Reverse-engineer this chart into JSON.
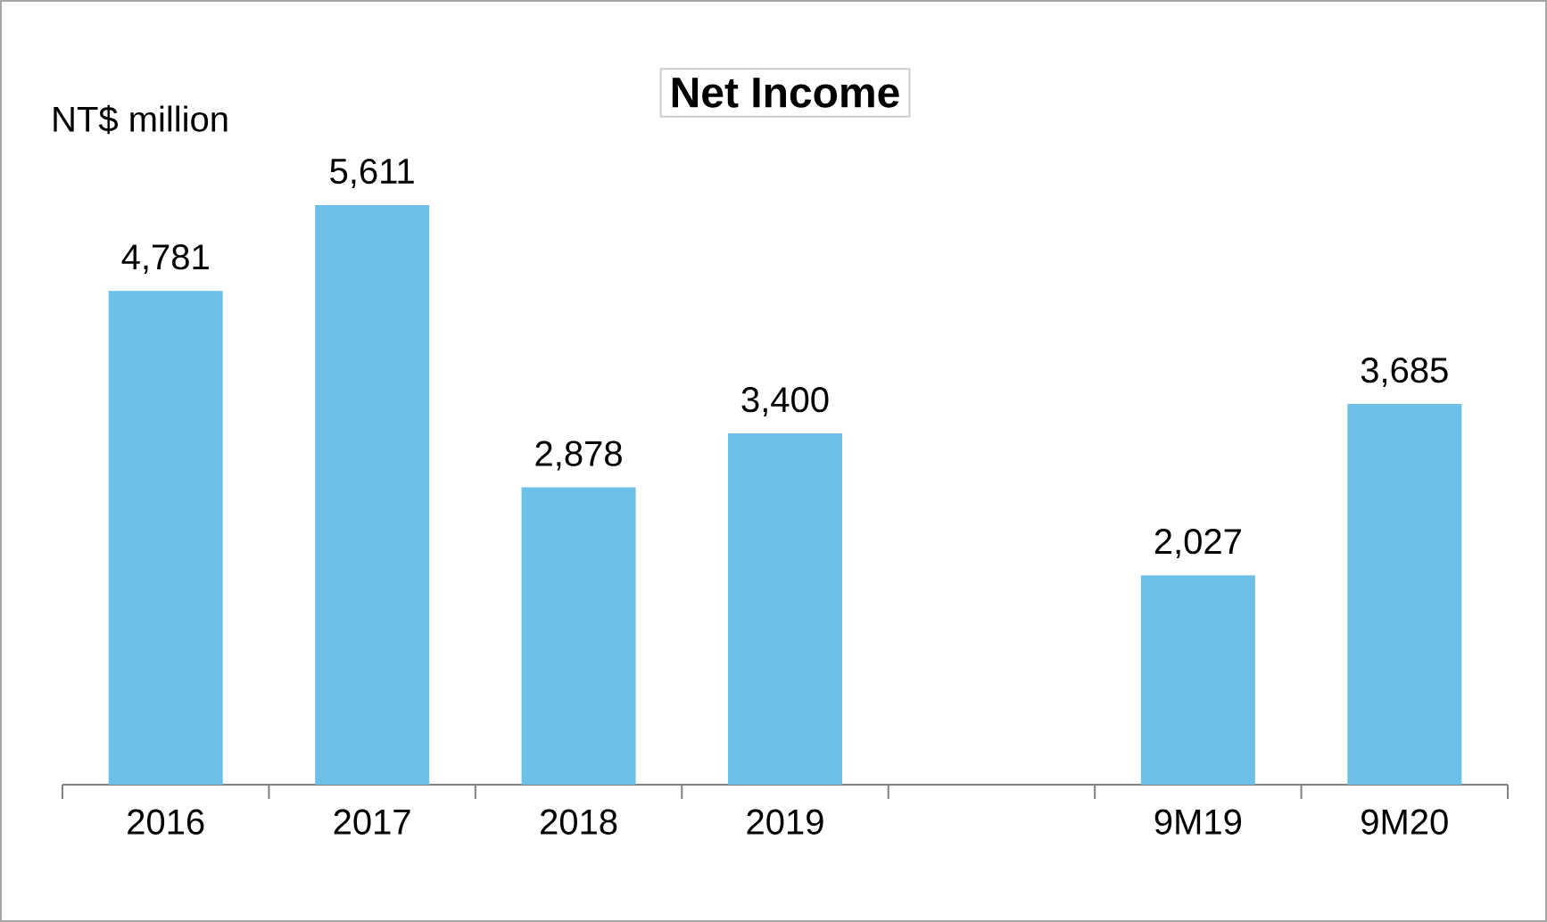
{
  "chart_data": {
    "type": "bar",
    "title": "Net Income",
    "ylabel": "NT$ million",
    "categories": [
      "2016",
      "2017",
      "2018",
      "2019",
      null,
      "9M19",
      "9M20"
    ],
    "values": [
      4781,
      5611,
      2878,
      3400,
      null,
      2027,
      3685
    ],
    "value_labels": [
      "4,781",
      "5,611",
      "2,878",
      "3,400",
      null,
      "2,027",
      "3,685"
    ],
    "color": "#6cc0e8"
  }
}
